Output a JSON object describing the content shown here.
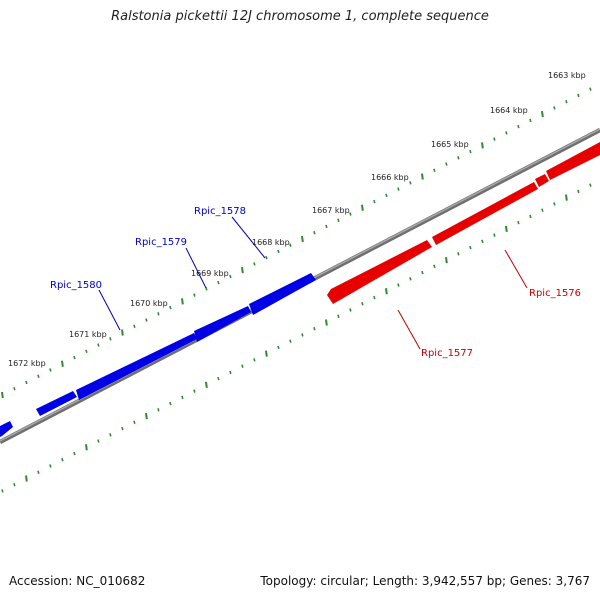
{
  "title": "Ralstonia pickettii 12J chromosome 1, complete sequence",
  "footer": {
    "accession": "Accession: NC_010682",
    "summary": "Topology: circular; Length: 3,942,557 bp; Genes: 3,767"
  },
  "colors": {
    "forward_gene": "#0000e0",
    "reverse_gene": "#e00000",
    "backbone": "#808080",
    "tick": "#2e8b2e"
  },
  "scale_labels": [
    "1663 kbp",
    "1664 kbp",
    "1665 kbp",
    "1666 kbp",
    "1667 kbp",
    "1668 kbp",
    "1669 kbp",
    "1670 kbp",
    "1671 kbp",
    "1672 kbp"
  ],
  "gene_labels": [
    {
      "name": "Rpic_1578",
      "strand": "forward"
    },
    {
      "name": "Rpic_1579",
      "strand": "forward"
    },
    {
      "name": "Rpic_1580",
      "strand": "forward"
    },
    {
      "name": "Rpic_1576",
      "strand": "reverse"
    },
    {
      "name": "Rpic_1577",
      "strand": "reverse"
    }
  ]
}
